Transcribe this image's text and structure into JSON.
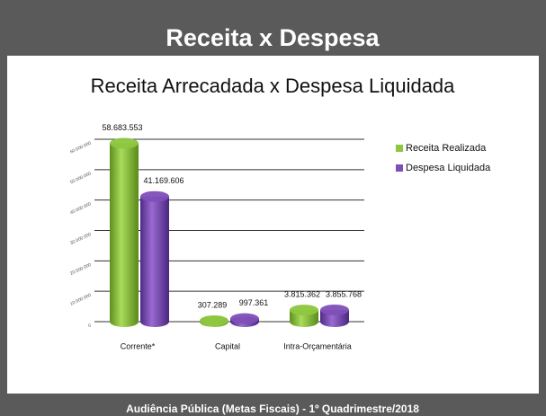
{
  "header": {
    "title": "Receita x Despesa"
  },
  "footer": {
    "text": "Audiência Pública (Metas Fiscais) - 1º  Quadrimestre/2018"
  },
  "chart_data": {
    "type": "bar",
    "title": "Receita Arrecadada x Despesa Liquidada",
    "categories": [
      "Corrente*",
      "Capital",
      "Intra-Orçamentária"
    ],
    "series": [
      {
        "name": "Receita Realizada",
        "color": "#8dc63f",
        "values": [
          58683553,
          307289,
          3815362
        ],
        "value_labels": [
          "58.683.553",
          "307.289",
          "3.815.362"
        ]
      },
      {
        "name": "Despesa Liquidada",
        "color": "#7f4fb8",
        "values": [
          41169606,
          997361,
          3855768
        ],
        "value_labels": [
          "41.169.606",
          "997.361",
          "3.855.768"
        ]
      }
    ],
    "ylim": [
      0,
      60000000
    ],
    "yticks": [
      {
        "value": 0,
        "label": "0"
      },
      {
        "value": 10000000,
        "label": "10.000.000"
      },
      {
        "value": 20000000,
        "label": "20.000.000"
      },
      {
        "value": 30000000,
        "label": "30.000.000"
      },
      {
        "value": 40000000,
        "label": "40.000.000"
      },
      {
        "value": 50000000,
        "label": "50.000.000"
      },
      {
        "value": 60000000,
        "label": "60.000.000"
      }
    ],
    "grid": true,
    "legend": "right"
  }
}
